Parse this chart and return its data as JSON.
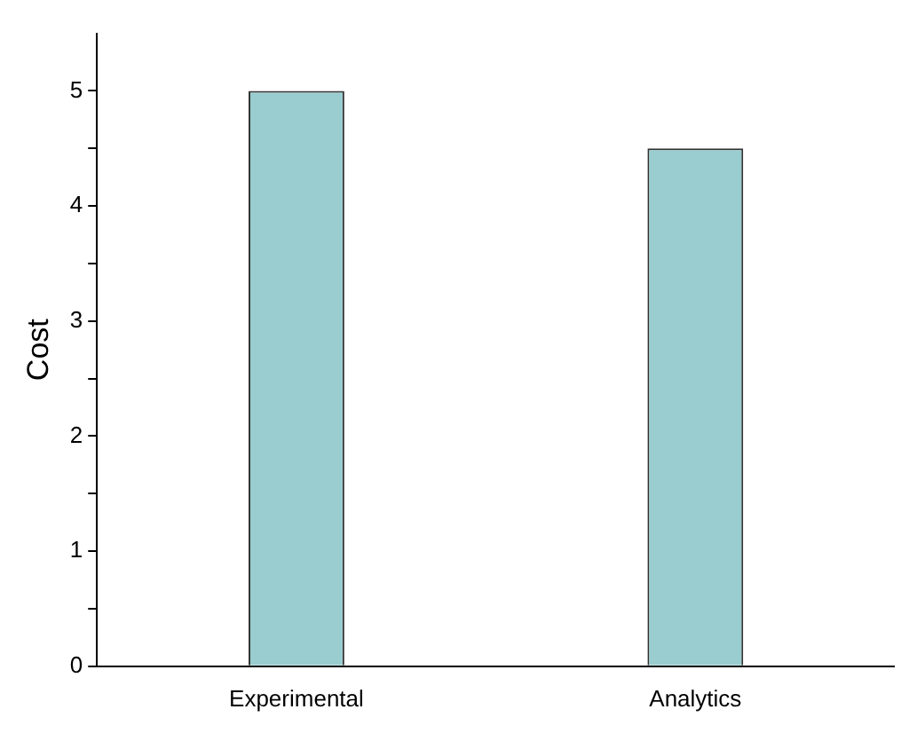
{
  "chart_data": {
    "type": "bar",
    "ylabel": "Cost",
    "categories": [
      "Experimental",
      "Analytics"
    ],
    "values": [
      5,
      4.5
    ],
    "color": "#99cdd0",
    "ylim": [
      0,
      5.5
    ],
    "yticks": [
      0,
      {
        "value": 0.5,
        "label": null
      },
      1,
      {
        "value": 1.5,
        "label": null
      },
      2,
      {
        "value": 2.5,
        "label": null
      },
      3,
      {
        "value": 3.5,
        "label": null
      },
      4,
      {
        "value": 4.5,
        "label": null
      },
      5
    ]
  }
}
